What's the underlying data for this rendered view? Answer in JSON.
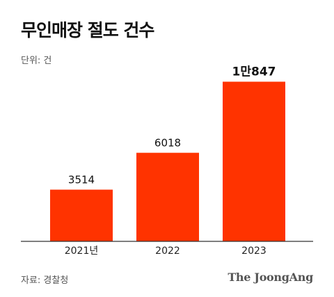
{
  "title": "무인매장 절도 건수",
  "unit_label": "단위: 건",
  "source": "자료: 경찰청",
  "brand": "The JoongAng",
  "colors": {
    "bar": "#ff3300",
    "axis": "#333333"
  },
  "chart_data": {
    "type": "bar",
    "title": "무인매장 절도 건수",
    "xlabel": "",
    "ylabel": "",
    "categories": [
      "2021년",
      "2022",
      "2023"
    ],
    "values": [
      3514,
      6018,
      10847
    ],
    "value_labels": [
      "3514",
      "6018",
      "1만847"
    ],
    "ylim": [
      0,
      11200
    ],
    "grid": false,
    "legend": "none"
  }
}
